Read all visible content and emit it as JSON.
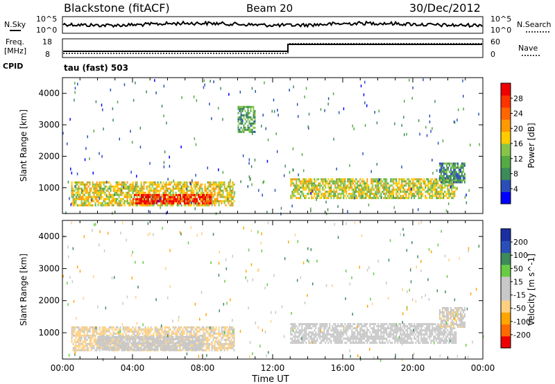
{
  "header": {
    "station": "Blackstone (fitACF)",
    "beam": "Beam 20",
    "date": "30/Dec/2012"
  },
  "noise_panel": {
    "left_label": "N.Sky",
    "right_label": "N.Search",
    "tick_top": "10^5",
    "tick_bottom": "10^0"
  },
  "freq_panel": {
    "left_label_1": "Freq.",
    "left_label_2": "[MHz]",
    "right_label": "Nave",
    "left_ticks": [
      "18",
      "8"
    ],
    "right_ticks": [
      "60",
      "0"
    ],
    "cpid_label": "CPID",
    "cpid_value": "tau (fast) 503"
  },
  "colors": {
    "power_scale": [
      "#0000ff",
      "#2a4fb8",
      "#3d8a5a",
      "#55aa44",
      "#88c44a",
      "#ffcc00",
      "#ff9900",
      "#ff6600",
      "#ff3300",
      "#ee0000"
    ],
    "velocity_scale": [
      "#ee0000",
      "#ff6a00",
      "#ffa500",
      "#ffd080",
      "#c8c8c8",
      "#c8c8c8",
      "#66cc44",
      "#3d8a5a",
      "#2a4fb8",
      "#1a2fa0"
    ]
  },
  "x_axis": {
    "label": "Time UT",
    "ticks": [
      "00:00",
      "04:00",
      "08:00",
      "12:00",
      "16:00",
      "20:00",
      "00:00"
    ]
  },
  "chart_data": [
    {
      "type": "heatmap",
      "title": "Power",
      "ylabel": "Slant Range [km]",
      "xlabel": "",
      "x_range_hours": [
        0,
        24
      ],
      "y_range_km": [
        180,
        4500
      ],
      "y_ticks": [
        1000,
        2000,
        3000,
        4000
      ],
      "colorbar": {
        "label": "Power [dB]",
        "ticks": [
          "4",
          "8",
          "12",
          "16",
          "20",
          "24",
          "28"
        ],
        "range": [
          0,
          30
        ]
      },
      "regions": [
        {
          "name": "main-echo-morning",
          "t": [
            0.5,
            9.8
          ],
          "r": [
            450,
            1200
          ],
          "level": 16
        },
        {
          "name": "strong-core",
          "t": [
            4.0,
            8.5
          ],
          "r": [
            500,
            800
          ],
          "level": 27
        },
        {
          "name": "evening-echo",
          "t": [
            13.0,
            22.5
          ],
          "r": [
            700,
            1300
          ],
          "level": 15
        },
        {
          "name": "late-rise",
          "t": [
            21.5,
            23.0
          ],
          "r": [
            1200,
            1800
          ],
          "level": 8
        },
        {
          "name": "sporadic-mid",
          "t": [
            10.0,
            11.0
          ],
          "r": [
            2800,
            3600
          ],
          "level": 10
        }
      ]
    },
    {
      "type": "heatmap",
      "title": "Velocity",
      "ylabel": "Slant Range [km]",
      "xlabel": "Time UT",
      "x_range_hours": [
        0,
        24
      ],
      "y_range_km": [
        180,
        4500
      ],
      "y_ticks": [
        1000,
        2000,
        3000,
        4000
      ],
      "colorbar": {
        "label": "Velocity [m s^-1]",
        "ticks": [
          "-200",
          "-100",
          "-50",
          "-15",
          "15",
          "50",
          "100",
          "200"
        ],
        "range": [
          -250,
          250
        ]
      },
      "regions": [
        {
          "name": "main-echo-morning",
          "t": [
            0.5,
            9.8
          ],
          "r": [
            450,
            1200
          ],
          "level": -60
        },
        {
          "name": "ground-scatter-core",
          "t": [
            2.0,
            8.0
          ],
          "r": [
            500,
            900
          ],
          "level": 0
        },
        {
          "name": "evening-echo",
          "t": [
            13.0,
            22.5
          ],
          "r": [
            700,
            1300
          ],
          "level": 0
        },
        {
          "name": "late-rise",
          "t": [
            21.5,
            23.0
          ],
          "r": [
            1200,
            1800
          ],
          "level": -30
        }
      ]
    }
  ]
}
